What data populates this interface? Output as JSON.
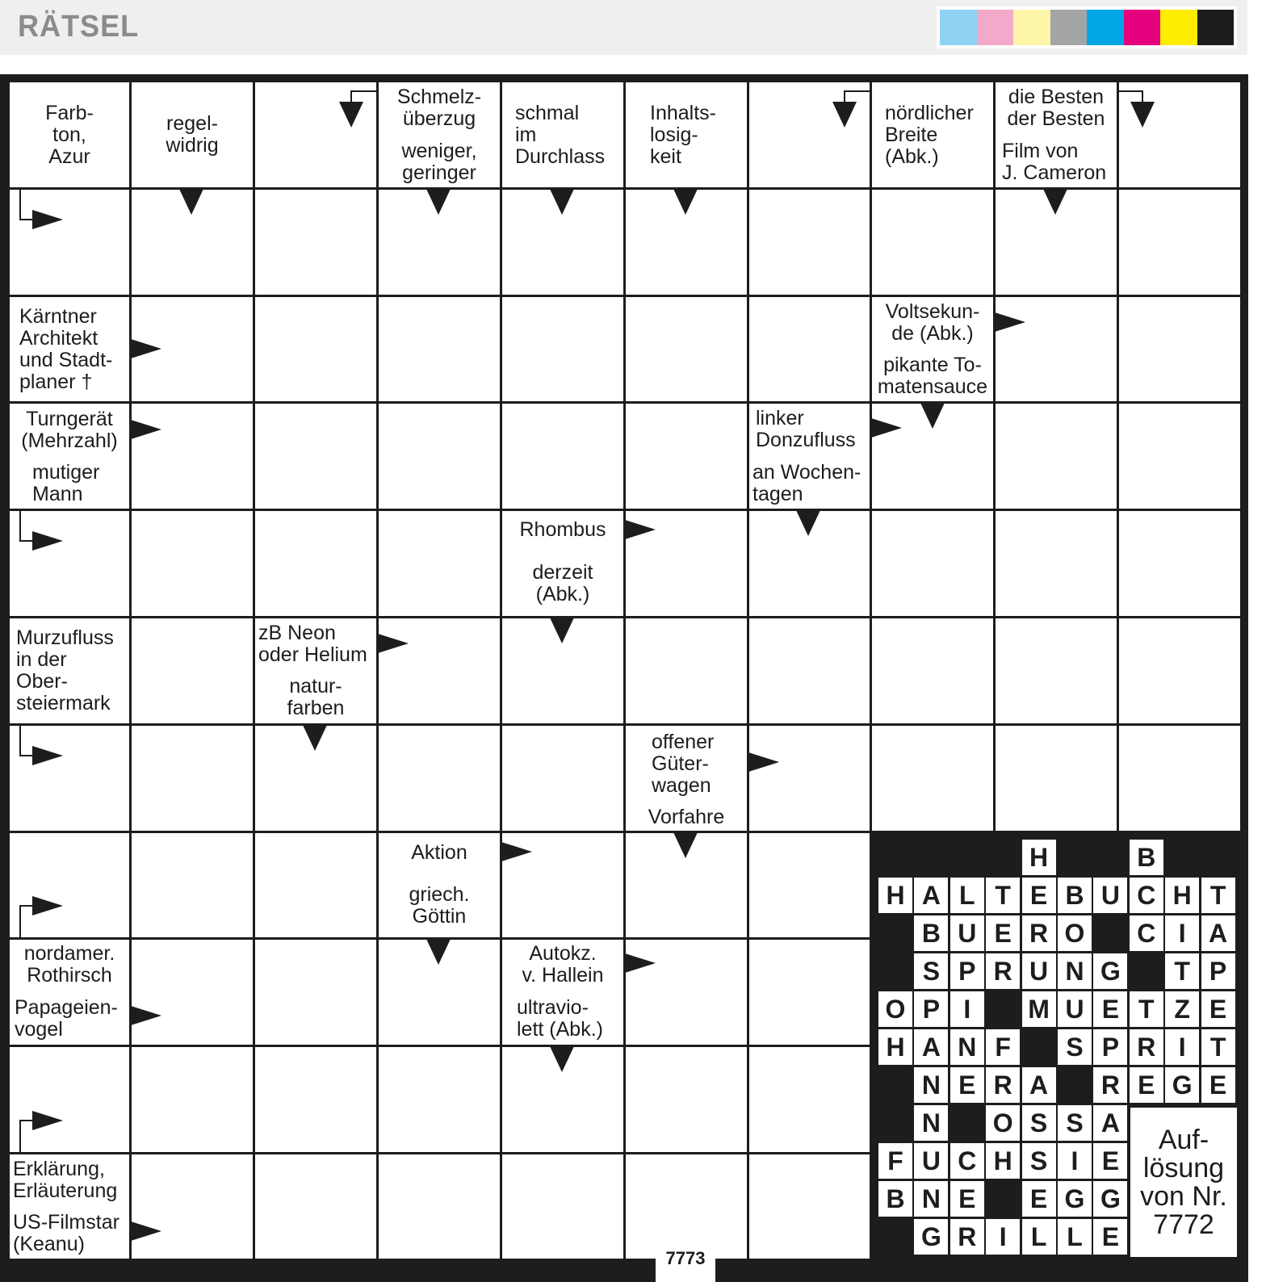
{
  "header": {
    "title": "RÄTSEL",
    "color_bar": [
      "#8fd3f4",
      "#f3a9c9",
      "#fdf5a8",
      "#a3a4a6",
      "#00a6e4",
      "#e5007e",
      "#ffed00",
      "#1e1c1c"
    ]
  },
  "puzzle": {
    "number": "7773"
  },
  "clues": [
    {
      "text": "Farb-\nton,\nAzur"
    },
    {
      "text": "regel-\nwidrig"
    },
    {
      "text": "Schmelz-\nüberzug"
    },
    {
      "text": "weniger,\ngeringer"
    },
    {
      "text": "schmal\nim\nDurchlass"
    },
    {
      "text": "Inhalts-\nlosig-\nkeit"
    },
    {
      "text": "nördlicher\nBreite\n(Abk.)"
    },
    {
      "text": "die Besten\nder Besten"
    },
    {
      "text": "Film von\nJ. Cameron"
    },
    {
      "text": "Kärntner\nArchitekt\nund Stadt-\nplaner †"
    },
    {
      "text": "Voltsekun-\nde (Abk.)"
    },
    {
      "text": "pikante To-\nmatensauce"
    },
    {
      "text": "Turngerät\n(Mehrzahl)"
    },
    {
      "text": "mutiger\nMann"
    },
    {
      "text": "linker\nDonzufluss"
    },
    {
      "text": "an Wochen-\ntagen"
    },
    {
      "text": "Rhombus"
    },
    {
      "text": "derzeit\n(Abk.)"
    },
    {
      "text": "Murzufluss\nin der\nOber-\nsteiermark"
    },
    {
      "text": "zB Neon\noder Helium"
    },
    {
      "text": "natur-\nfarben"
    },
    {
      "text": "offener\nGüter-\nwagen"
    },
    {
      "text": "Vorfahre"
    },
    {
      "text": "Aktion"
    },
    {
      "text": "griech.\nGöttin"
    },
    {
      "text": "nordamer.\nRothirsch"
    },
    {
      "text": "Papageien-\nvogel"
    },
    {
      "text": "Autokz.\nv. Hallein"
    },
    {
      "text": "ultravio-\nlett (Abk.)"
    },
    {
      "text": "Erklärung,\nErläuterung"
    },
    {
      "text": "US-Filmstar\n(Keanu)"
    }
  ],
  "solution": {
    "caption": "Auf-\nlösung\nvon Nr.\n7772",
    "rows": [
      "####H##B##",
      "HALTEBUCHT",
      "#BUERO#CIA",
      "#SPRUNG#TP",
      "OPI#MUETZE",
      "HANF#SPRIT",
      "#NERA#REGE",
      "#N#OSSA   ",
      "FUCHSIE   ",
      "BNE#EGG   ",
      "#GRILLE   "
    ]
  }
}
